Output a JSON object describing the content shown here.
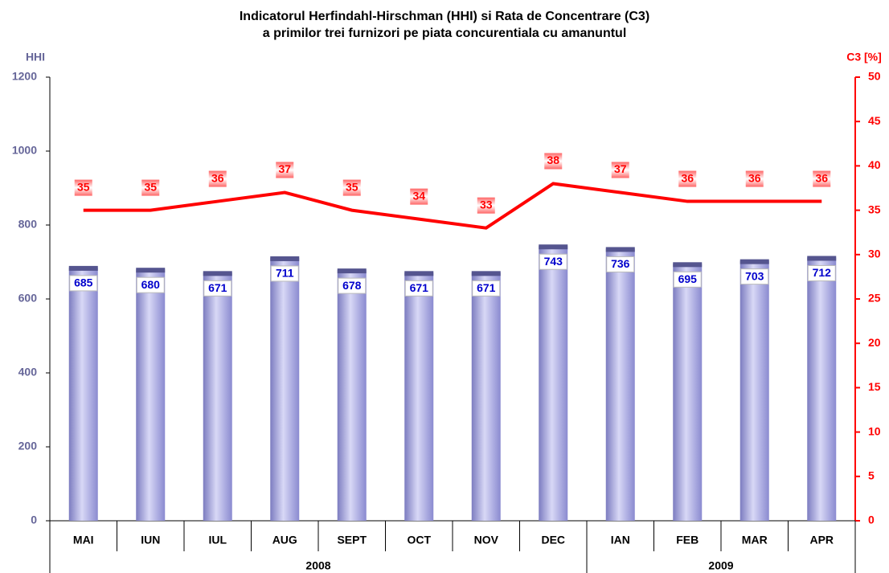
{
  "chart_data": {
    "type": "bar",
    "title": [
      "Indicatorul Herfindahl-Hirschman (HHI) si Rata de Concentrare (C3)",
      "a primilor trei furnizori pe piata concurentiala cu amanuntul"
    ],
    "ylabel": "HHI",
    "y2label": "C3 [%]",
    "categories": [
      "MAI",
      "IUN",
      "IUL",
      "AUG",
      "SEPT",
      "OCT",
      "NOV",
      "DEC",
      "IAN",
      "FEB",
      "MAR",
      "APR"
    ],
    "groups": [
      {
        "label": "2008",
        "span": 8
      },
      {
        "label": "2009",
        "span": 4
      }
    ],
    "series": [
      {
        "name": "HHI",
        "type": "bar",
        "color": "#9a9ae0",
        "values": [
          685,
          680,
          671,
          711,
          678,
          671,
          671,
          743,
          736,
          695,
          703,
          712
        ]
      },
      {
        "name": "C3",
        "type": "line",
        "axis": "y2",
        "color": "#ff0000",
        "values": [
          35,
          35,
          36,
          37,
          35,
          34,
          33,
          38,
          37,
          36,
          36,
          36
        ]
      }
    ],
    "ylim": [
      0,
      1200
    ],
    "yticks": [
      0,
      200,
      400,
      600,
      800,
      1000,
      1200
    ],
    "y2lim": [
      0,
      50
    ],
    "y2ticks": [
      0,
      5,
      10,
      15,
      20,
      25,
      30,
      35,
      40,
      45,
      50
    ],
    "grid": false
  }
}
